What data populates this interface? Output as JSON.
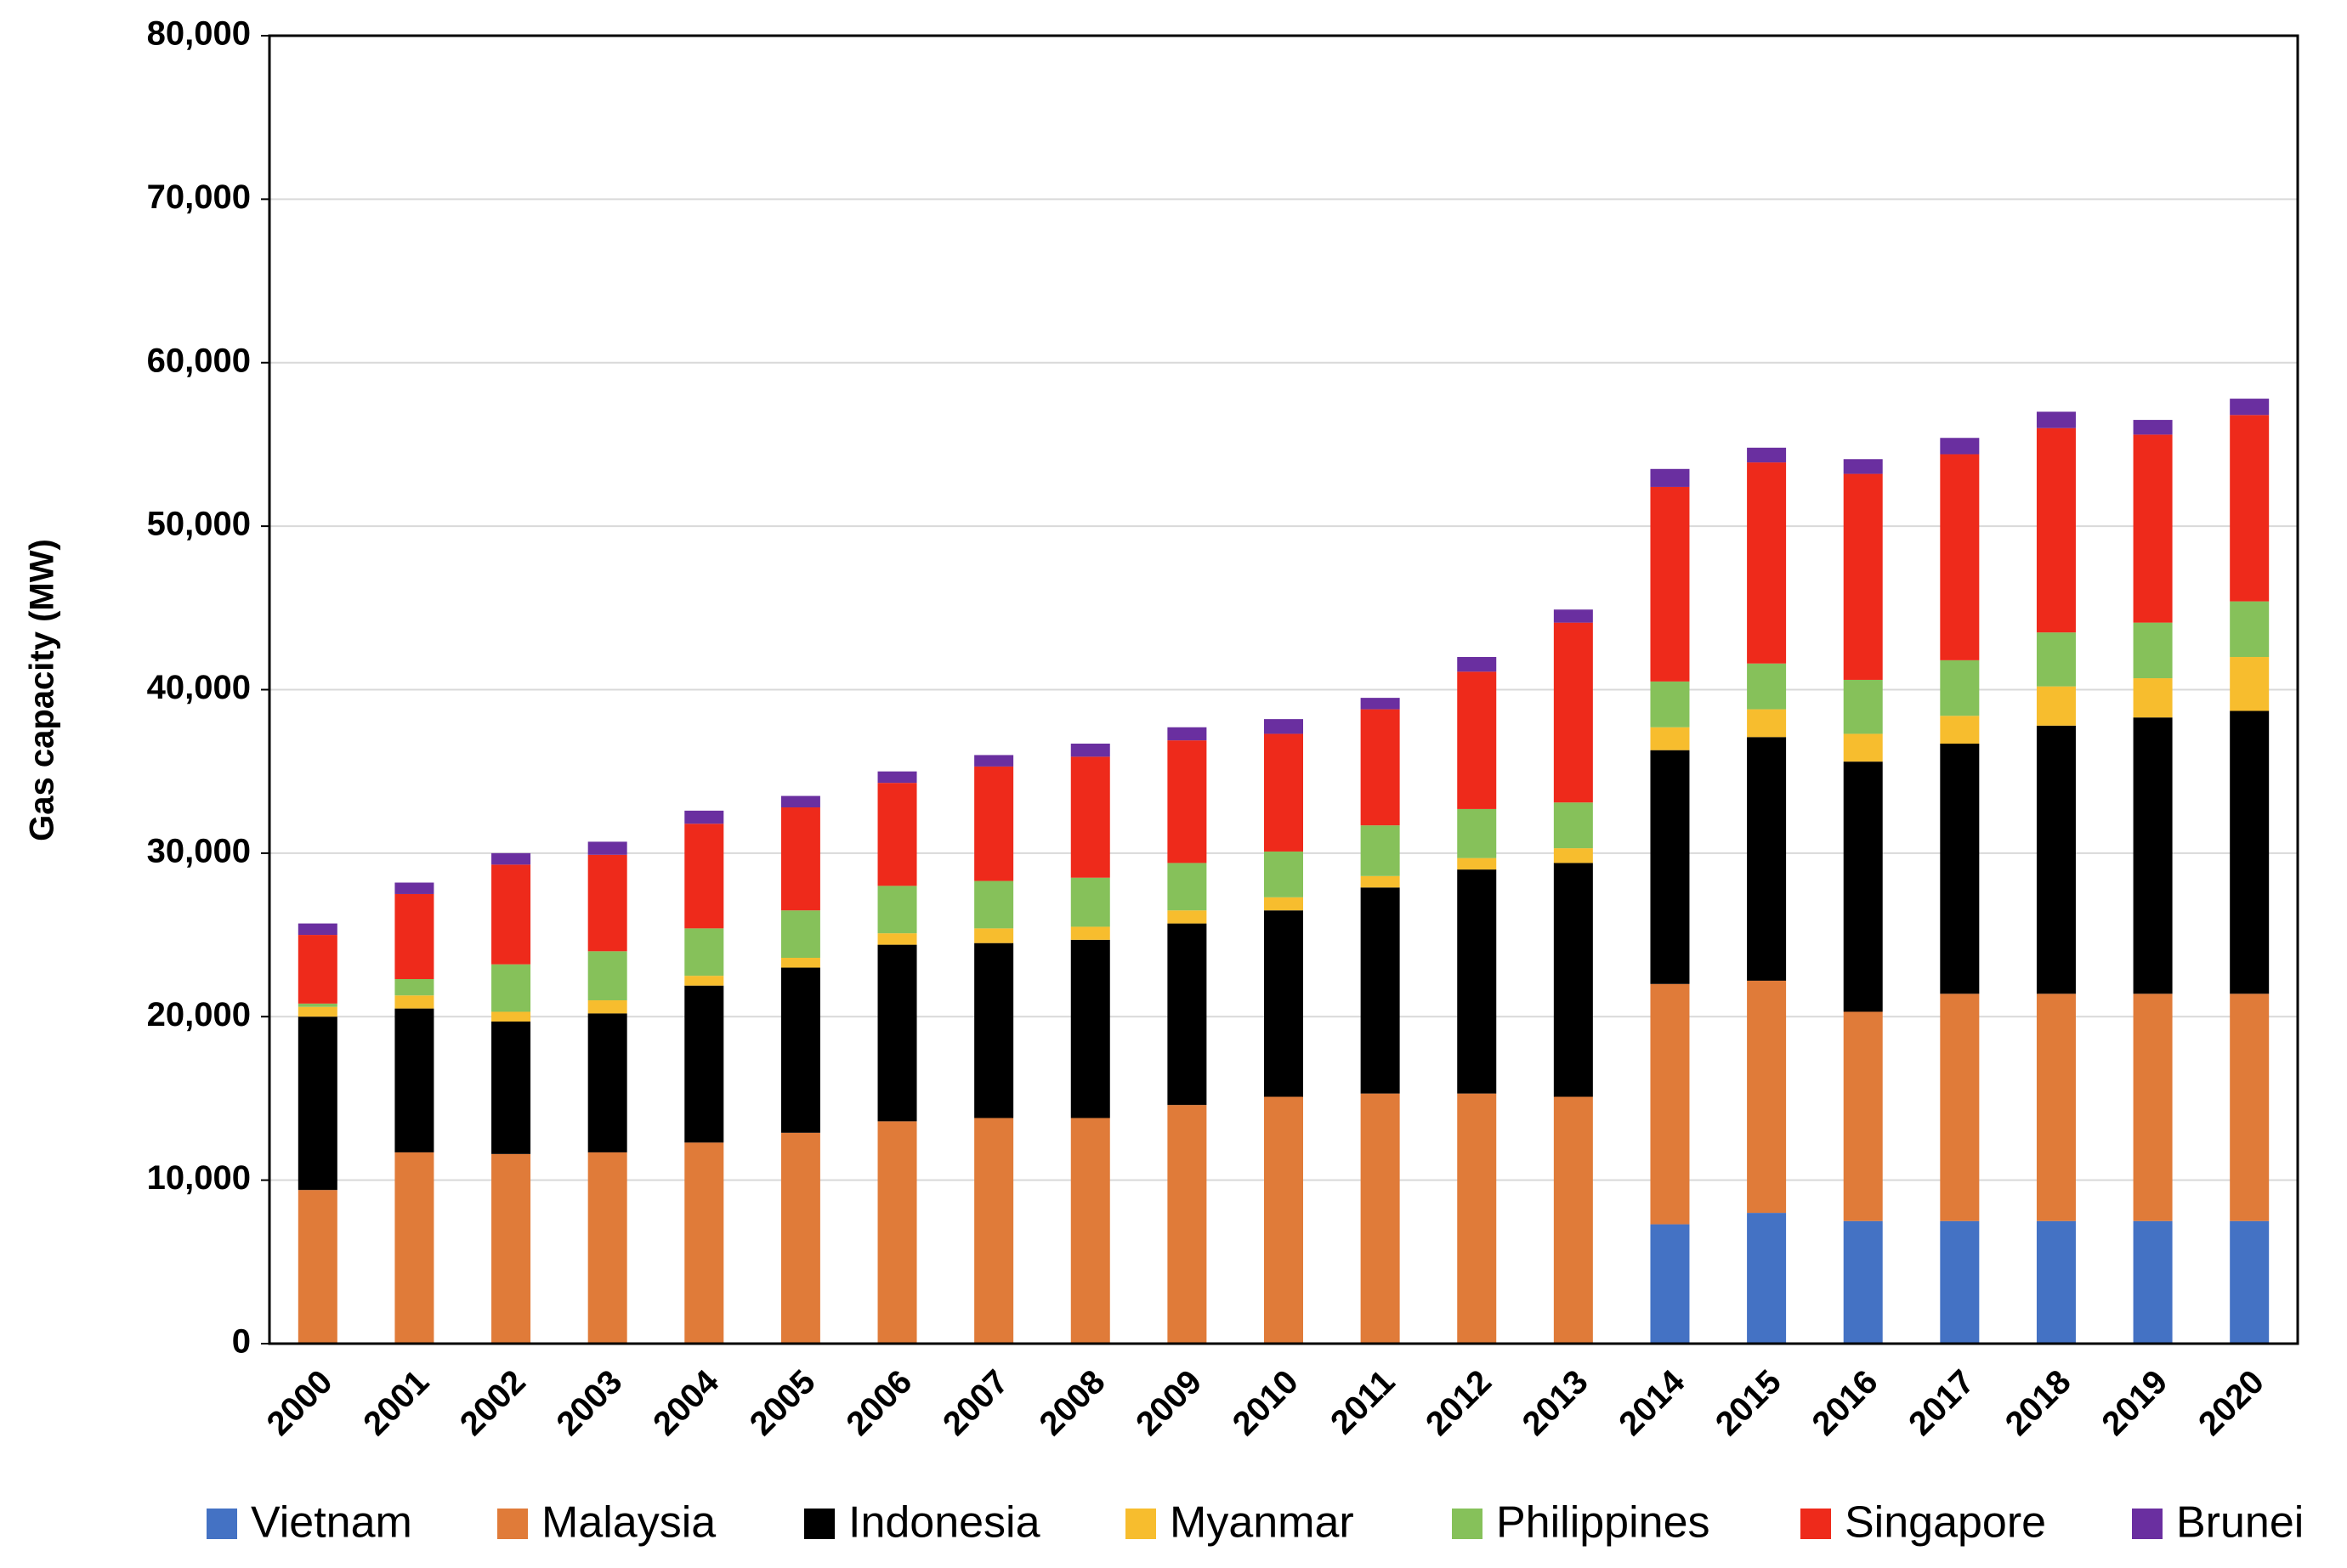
{
  "chart_data": {
    "type": "stacked_bar",
    "y_label": "Gas capacity (MW)",
    "categories": [
      "2000",
      "2001",
      "2002",
      "2003",
      "2004",
      "2005",
      "2006",
      "2007",
      "2008",
      "2009",
      "2010",
      "2011",
      "2012",
      "2013",
      "2014",
      "2015",
      "2016",
      "2017",
      "2018",
      "2019",
      "2020"
    ],
    "series": [
      {
        "name": "Vietnam",
        "color": "#4472c4",
        "values": [
          0,
          0,
          0,
          0,
          0,
          0,
          0,
          0,
          0,
          0,
          0,
          0,
          0,
          0,
          7300,
          8000,
          7500,
          7500,
          7500,
          7500,
          7500
        ]
      },
      {
        "name": "Malaysia",
        "color": "#e07b39",
        "values": [
          9400,
          11700,
          11600,
          11700,
          12300,
          12900,
          13600,
          13800,
          13800,
          14600,
          15100,
          15300,
          15300,
          15100,
          14700,
          14200,
          12800,
          13900,
          13900,
          13900,
          13900
        ]
      },
      {
        "name": "Indonesia",
        "color": "#000000",
        "values": [
          10600,
          8800,
          8100,
          8500,
          9600,
          10100,
          10800,
          10700,
          10900,
          11100,
          11400,
          12600,
          13700,
          14300,
          14300,
          14900,
          15300,
          15300,
          16400,
          16900,
          17300
        ]
      },
      {
        "name": "Myanmar",
        "color": "#f7bd2e",
        "values": [
          600,
          800,
          600,
          800,
          600,
          600,
          700,
          900,
          800,
          800,
          800,
          700,
          700,
          900,
          1400,
          1700,
          1700,
          1700,
          2400,
          2400,
          3300
        ]
      },
      {
        "name": "Philippines",
        "color": "#86c15a",
        "values": [
          200,
          1000,
          2900,
          3000,
          2900,
          2900,
          2900,
          2900,
          3000,
          2900,
          2800,
          3100,
          3000,
          2800,
          2800,
          2800,
          3300,
          3400,
          3300,
          3400,
          3400
        ]
      },
      {
        "name": "Singapore",
        "color": "#ee2a1b",
        "values": [
          4200,
          5200,
          6100,
          5900,
          6400,
          6300,
          6300,
          7000,
          7400,
          7500,
          7200,
          7100,
          8400,
          11000,
          11900,
          12300,
          12600,
          12600,
          12500,
          11500,
          11400
        ]
      },
      {
        "name": "Brunei",
        "color": "#6a2fa0",
        "values": [
          700,
          700,
          700,
          800,
          800,
          700,
          700,
          700,
          800,
          800,
          900,
          700,
          900,
          800,
          1100,
          900,
          900,
          1000,
          1000,
          900,
          1000
        ]
      }
    ],
    "ylim": [
      0,
      80000
    ],
    "yticks": [
      0,
      {
        "value": 10000,
        "label": "10,000"
      },
      {
        "value": 20000,
        "label": "20,000"
      },
      {
        "value": 30000,
        "label": "30,000"
      },
      {
        "value": 40000,
        "label": "40,000"
      },
      {
        "value": 50000,
        "label": "50,000"
      },
      {
        "value": 60000,
        "label": "60,000"
      },
      {
        "value": 70000,
        "label": "70,000"
      },
      {
        "value": 80000,
        "label": "80,000"
      }
    ],
    "grid": true,
    "legend": "bottom"
  }
}
